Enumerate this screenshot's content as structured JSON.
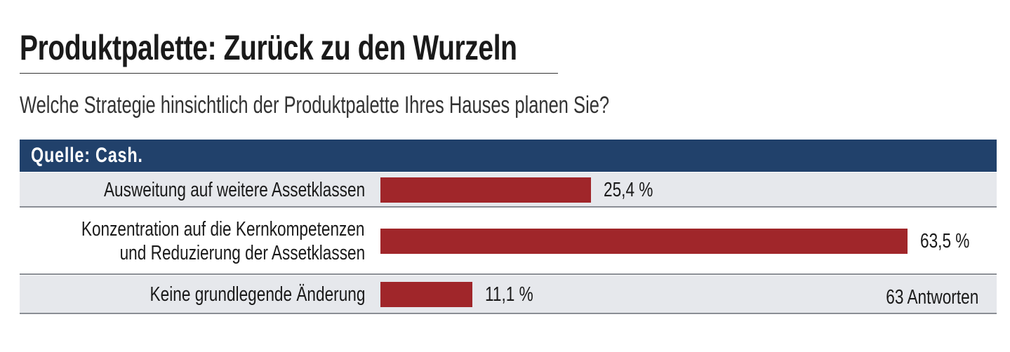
{
  "title": "Produktpalette: Zurück zu den Wurzeln",
  "subtitle": "Welche Strategie hinsichtlich der Produktpalette Ihres Hauses planen Sie?",
  "source": "Quelle: Cash.",
  "note": "63 Antworten",
  "colors": {
    "header": "#21416b",
    "bar": "#a0262a",
    "row_shade": "#e6e8ec"
  },
  "chart_data": {
    "type": "bar",
    "orientation": "horizontal",
    "categories": [
      [
        "Ausweitung auf weitere Assetklassen"
      ],
      [
        "Konzentration auf die Kernkompetenzen",
        "und Reduzierung der Assetklassen"
      ],
      [
        "Keine grundlegende Änderung"
      ]
    ],
    "values": [
      25.4,
      63.5,
      11.1
    ],
    "value_labels": [
      "25,4 %",
      "63,5 %",
      "11,1 %"
    ],
    "unit": "%",
    "xlim": [
      0,
      63.5
    ],
    "grid": false,
    "legend": "none"
  }
}
